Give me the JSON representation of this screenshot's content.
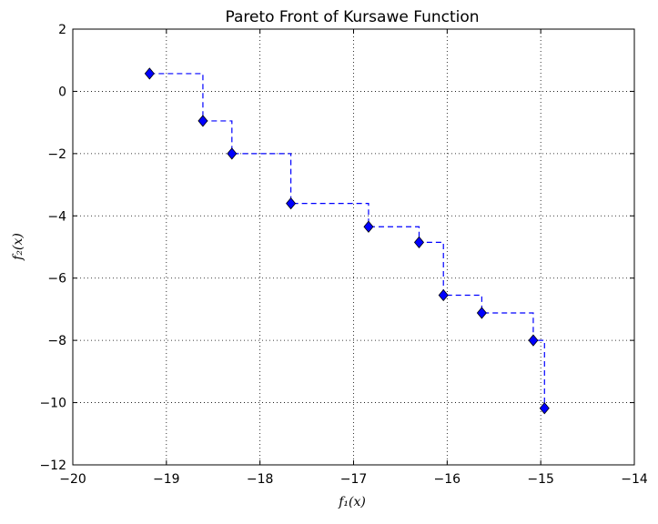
{
  "chart_data": {
    "type": "line",
    "title": "Pareto Front of Kursawe Function",
    "xlabel": "f₁(x)",
    "ylabel": "f₂(x)",
    "xlim": [
      -20,
      -14
    ],
    "ylim": [
      -12,
      2
    ],
    "xticks": [
      -20,
      -19,
      -18,
      -17,
      -16,
      -15,
      -14
    ],
    "yticks": [
      -12,
      -10,
      -8,
      -6,
      -4,
      -2,
      0,
      2
    ],
    "xtick_labels": [
      "−20",
      "−19",
      "−18",
      "−17",
      "−16",
      "−15",
      "−14"
    ],
    "ytick_labels": [
      "−12",
      "−10",
      "−8",
      "−6",
      "−4",
      "−2",
      "0",
      "2"
    ],
    "grid": true,
    "line_style": "dashed step (post)",
    "marker": "diamond",
    "colors": {
      "series": "#0000ff",
      "grid": "#000000",
      "axes": "#000000"
    },
    "series": [
      {
        "x": [
          -19.18,
          -18.61,
          -18.3,
          -17.67,
          -16.84,
          -16.3,
          -16.04,
          -15.63,
          -15.08,
          -14.96
        ],
        "y": [
          0.57,
          -0.95,
          -2.0,
          -3.6,
          -4.35,
          -4.85,
          -6.55,
          -7.12,
          -8.0,
          -10.18
        ]
      }
    ]
  }
}
